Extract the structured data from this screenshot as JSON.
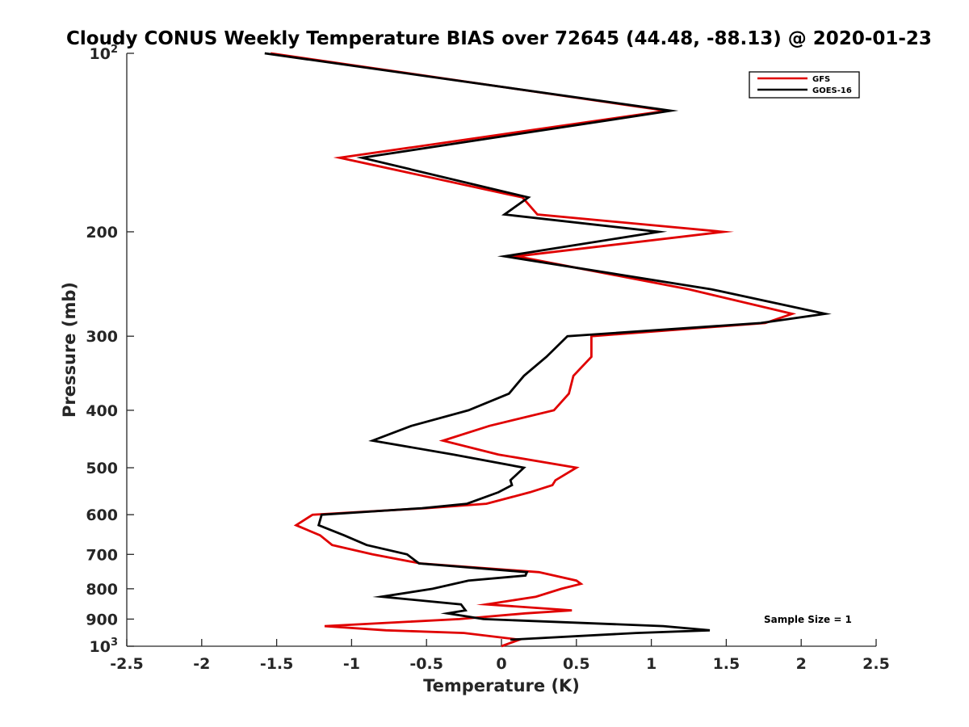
{
  "chart_data": {
    "type": "line",
    "title": "Cloudy CONUS Weekly Temperature BIAS over 72645 (44.48, -88.13) @ 2020-01-23",
    "xlabel": "Temperature (K)",
    "ylabel": "Pressure (mb)",
    "xlim": [
      -2.5,
      2.5
    ],
    "ylim": [
      100,
      1000
    ],
    "yscale": "log",
    "y_reversed": true,
    "grid": false,
    "legend_position": "top-right",
    "annotation": "Sample Size = 1",
    "x_ticks": [
      "-2.5",
      "-2",
      "-1.5",
      "-1",
      "-0.5",
      "0",
      "0.5",
      "1",
      "1.5",
      "2",
      "2.5"
    ],
    "y_ticks": [
      {
        "value": 100,
        "base": "10",
        "exp": "2"
      },
      {
        "value": 200,
        "label": "200"
      },
      {
        "value": 300,
        "label": "300"
      },
      {
        "value": 400,
        "label": "400"
      },
      {
        "value": 500,
        "label": "500"
      },
      {
        "value": 600,
        "label": "600"
      },
      {
        "value": 700,
        "label": "700"
      },
      {
        "value": 800,
        "label": "800"
      },
      {
        "value": 900,
        "label": "900"
      },
      {
        "value": 1000,
        "base": "10",
        "exp": "3"
      }
    ],
    "series": [
      {
        "name": "GFS",
        "color": "#e00000",
        "points": [
          [
            -1.54,
            100
          ],
          [
            1.1,
            125
          ],
          [
            -1.08,
            150
          ],
          [
            0.14,
            175
          ],
          [
            0.24,
            187
          ],
          [
            1.48,
            200
          ],
          [
            0.1,
            220
          ],
          [
            1.25,
            250
          ],
          [
            1.94,
            275
          ],
          [
            1.76,
            285
          ],
          [
            0.6,
            300
          ],
          [
            0.6,
            325
          ],
          [
            0.48,
            350
          ],
          [
            0.45,
            375
          ],
          [
            0.35,
            400
          ],
          [
            -0.08,
            425
          ],
          [
            -0.39,
            450
          ],
          [
            -0.02,
            475
          ],
          [
            0.5,
            500
          ],
          [
            0.36,
            525
          ],
          [
            0.34,
            535
          ],
          [
            0.19,
            550
          ],
          [
            -0.1,
            575
          ],
          [
            -0.5,
            585
          ],
          [
            -1.26,
            600
          ],
          [
            -1.37,
            625
          ],
          [
            -1.21,
            650
          ],
          [
            -1.13,
            675
          ],
          [
            -0.86,
            700
          ],
          [
            -0.54,
            725
          ],
          [
            0.25,
            750
          ],
          [
            0.5,
            775
          ],
          [
            0.53,
            785
          ],
          [
            0.4,
            800
          ],
          [
            0.23,
            825
          ],
          [
            -0.1,
            850
          ],
          [
            0.47,
            870
          ],
          [
            0.16,
            880
          ],
          [
            -0.28,
            900
          ],
          [
            -1.18,
            925
          ],
          [
            -0.77,
            940
          ],
          [
            -0.25,
            950
          ],
          [
            0.12,
            975
          ],
          [
            0.0,
            1000
          ]
        ]
      },
      {
        "name": "GOES-16",
        "color": "#000000",
        "points": [
          [
            -1.58,
            100
          ],
          [
            1.13,
            125
          ],
          [
            -0.93,
            150
          ],
          [
            0.18,
            175
          ],
          [
            0.02,
            187
          ],
          [
            1.05,
            200
          ],
          [
            0.02,
            220
          ],
          [
            1.4,
            250
          ],
          [
            2.16,
            275
          ],
          [
            1.73,
            285
          ],
          [
            0.44,
            300
          ],
          [
            0.3,
            325
          ],
          [
            0.15,
            350
          ],
          [
            0.05,
            375
          ],
          [
            -0.22,
            400
          ],
          [
            -0.6,
            425
          ],
          [
            -0.86,
            450
          ],
          [
            -0.32,
            475
          ],
          [
            0.15,
            500
          ],
          [
            0.06,
            525
          ],
          [
            0.07,
            535
          ],
          [
            -0.02,
            550
          ],
          [
            -0.23,
            575
          ],
          [
            -0.53,
            585
          ],
          [
            -1.2,
            600
          ],
          [
            -1.22,
            625
          ],
          [
            -1.05,
            650
          ],
          [
            -0.9,
            675
          ],
          [
            -0.63,
            700
          ],
          [
            -0.55,
            725
          ],
          [
            0.17,
            750
          ],
          [
            0.16,
            760
          ],
          [
            -0.22,
            775
          ],
          [
            -0.46,
            800
          ],
          [
            -0.8,
            825
          ],
          [
            -0.27,
            850
          ],
          [
            -0.24,
            870
          ],
          [
            -0.36,
            880
          ],
          [
            -0.12,
            900
          ],
          [
            1.08,
            925
          ],
          [
            1.39,
            940
          ],
          [
            0.9,
            950
          ],
          [
            0.06,
            975
          ]
        ]
      }
    ]
  }
}
